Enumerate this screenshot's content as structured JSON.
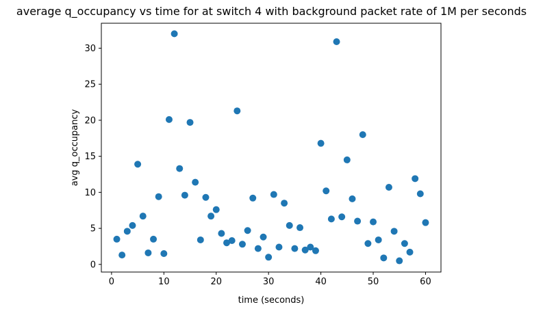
{
  "chart_data": {
    "type": "scatter",
    "title": "average q_occupancy vs time for at switch 4 with background packet rate of 1M per seconds",
    "xlabel": "time (seconds)",
    "ylabel": "avg q_occupancy",
    "xlim": [
      -1.95,
      62.95
    ],
    "ylim": [
      -1.06,
      33.46
    ],
    "xticks": [
      0,
      10,
      20,
      30,
      40,
      50,
      60
    ],
    "yticks": [
      0,
      5,
      10,
      15,
      20,
      25,
      30
    ],
    "grid": false,
    "marker_color": "#1f77b4",
    "points": [
      {
        "x": 1,
        "y": 3.5
      },
      {
        "x": 2,
        "y": 1.3
      },
      {
        "x": 3,
        "y": 4.6
      },
      {
        "x": 4,
        "y": 5.4
      },
      {
        "x": 5,
        "y": 13.9
      },
      {
        "x": 6,
        "y": 6.7
      },
      {
        "x": 7,
        "y": 1.6
      },
      {
        "x": 8,
        "y": 3.5
      },
      {
        "x": 9,
        "y": 9.4
      },
      {
        "x": 10,
        "y": 1.5
      },
      {
        "x": 11,
        "y": 20.1
      },
      {
        "x": 12,
        "y": 32.0
      },
      {
        "x": 13,
        "y": 13.3
      },
      {
        "x": 14,
        "y": 9.6
      },
      {
        "x": 15,
        "y": 19.7
      },
      {
        "x": 16,
        "y": 11.4
      },
      {
        "x": 17,
        "y": 3.4
      },
      {
        "x": 18,
        "y": 9.3
      },
      {
        "x": 19,
        "y": 6.7
      },
      {
        "x": 20,
        "y": 7.6
      },
      {
        "x": 21,
        "y": 4.3
      },
      {
        "x": 22,
        "y": 3.0
      },
      {
        "x": 23,
        "y": 3.3
      },
      {
        "x": 24,
        "y": 21.3
      },
      {
        "x": 25,
        "y": 2.8
      },
      {
        "x": 26,
        "y": 4.7
      },
      {
        "x": 27,
        "y": 9.2
      },
      {
        "x": 28,
        "y": 2.2
      },
      {
        "x": 29,
        "y": 3.8
      },
      {
        "x": 30,
        "y": 1.0
      },
      {
        "x": 31,
        "y": 9.7
      },
      {
        "x": 32,
        "y": 2.4
      },
      {
        "x": 33,
        "y": 8.5
      },
      {
        "x": 34,
        "y": 5.4
      },
      {
        "x": 35,
        "y": 2.2
      },
      {
        "x": 36,
        "y": 5.1
      },
      {
        "x": 37,
        "y": 2.0
      },
      {
        "x": 38,
        "y": 2.4
      },
      {
        "x": 39,
        "y": 1.9
      },
      {
        "x": 40,
        "y": 16.8
      },
      {
        "x": 41,
        "y": 10.2
      },
      {
        "x": 42,
        "y": 6.3
      },
      {
        "x": 43,
        "y": 30.9
      },
      {
        "x": 44,
        "y": 6.6
      },
      {
        "x": 45,
        "y": 14.5
      },
      {
        "x": 46,
        "y": 9.1
      },
      {
        "x": 47,
        "y": 6.0
      },
      {
        "x": 48,
        "y": 18.0
      },
      {
        "x": 49,
        "y": 2.9
      },
      {
        "x": 50,
        "y": 5.9
      },
      {
        "x": 51,
        "y": 3.4
      },
      {
        "x": 52,
        "y": 0.9
      },
      {
        "x": 53,
        "y": 10.7
      },
      {
        "x": 54,
        "y": 4.6
      },
      {
        "x": 55,
        "y": 0.5
      },
      {
        "x": 56,
        "y": 2.9
      },
      {
        "x": 57,
        "y": 1.7
      },
      {
        "x": 58,
        "y": 11.9
      },
      {
        "x": 59,
        "y": 9.8
      },
      {
        "x": 60,
        "y": 5.8
      }
    ]
  }
}
